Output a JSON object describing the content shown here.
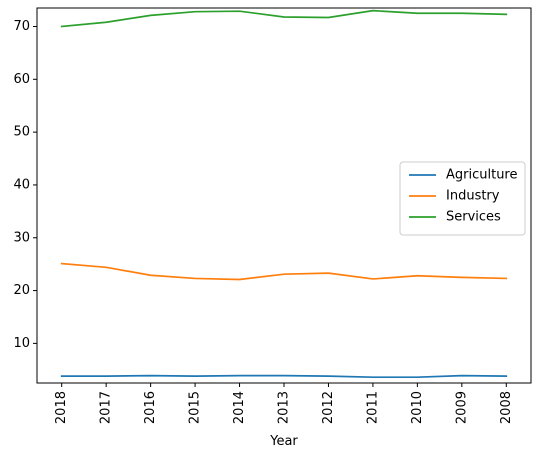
{
  "chart_data": {
    "type": "line",
    "title": "",
    "xlabel": "Year",
    "ylabel": "",
    "categories": [
      "2018",
      "2017",
      "2016",
      "2015",
      "2014",
      "2013",
      "2012",
      "2011",
      "2010",
      "2009",
      "2008"
    ],
    "ylim": [
      2.5,
      73.5
    ],
    "yticks": [
      10,
      20,
      30,
      40,
      50,
      60,
      70
    ],
    "grid": false,
    "legend_position": "center-right",
    "series": [
      {
        "name": "Agriculture",
        "color": "#1f77b4",
        "values": [
          3.8,
          3.8,
          3.9,
          3.8,
          3.9,
          3.9,
          3.8,
          3.6,
          3.6,
          3.9,
          3.8
        ]
      },
      {
        "name": "Industry",
        "color": "#ff7f0e",
        "values": [
          25.1,
          24.4,
          22.9,
          22.3,
          22.1,
          23.1,
          23.3,
          22.2,
          22.8,
          22.5,
          22.3
        ]
      },
      {
        "name": "Services",
        "color": "#2ca02c",
        "values": [
          70.0,
          70.8,
          72.1,
          72.8,
          72.9,
          71.8,
          71.7,
          73.0,
          72.5,
          72.5,
          72.3
        ]
      }
    ]
  }
}
